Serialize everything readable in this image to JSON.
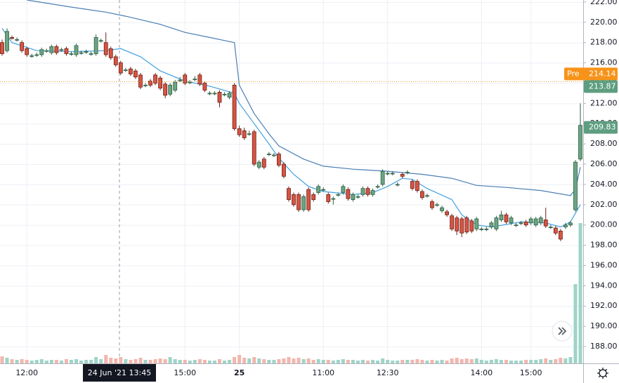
{
  "chart_data": {
    "type": "candlestick",
    "categories": [
      null,
      null,
      null,
      null,
      null,
      "12:00",
      null,
      null,
      null,
      null,
      null,
      null,
      null,
      null,
      null,
      null,
      null,
      null,
      null,
      null,
      null,
      null,
      null,
      null,
      null,
      null,
      null,
      null,
      null,
      null,
      null,
      null,
      null,
      null,
      null,
      null,
      null,
      "15:00",
      null,
      null,
      null,
      null,
      null,
      null,
      null,
      null,
      null,
      null,
      "25",
      null,
      null,
      null,
      null,
      null,
      null,
      null,
      null,
      null,
      null,
      null,
      null,
      null,
      null,
      null,
      null,
      "11:00",
      null,
      null,
      null,
      null,
      null,
      null,
      null,
      null,
      null,
      null,
      null,
      null,
      "12:30",
      null,
      null,
      null,
      null,
      null,
      null,
      null,
      null,
      null,
      null,
      null,
      null,
      null,
      null,
      null,
      null,
      null,
      null,
      "14:00",
      null,
      null,
      null,
      null,
      null,
      null,
      null,
      null,
      null,
      "15:00",
      null,
      null,
      null,
      null,
      null,
      null,
      null,
      null,
      null,
      null
    ],
    "open": [
      218.0,
      217.2,
      218.5,
      218.3,
      218.0,
      217.4,
      216.7,
      216.8,
      216.8,
      217.2,
      217.0,
      217.6,
      217.3,
      217.4,
      216.9,
      216.8,
      217.0,
      217.1,
      216.9,
      216.9,
      218.2,
      218.0,
      217.4,
      216.6,
      216.0,
      215.3,
      215.4,
      215.2,
      214.8,
      213.8,
      214.2,
      214.8,
      214.5,
      213.9,
      212.9,
      213.3,
      214.3,
      214.8,
      214.1,
      214.4,
      214.8,
      214.0,
      213.0,
      213.0,
      213.1,
      212.9,
      212.6,
      213.8,
      209.5,
      209.3,
      209.0,
      209.2,
      205.7,
      206.5,
      207.0,
      206.9,
      207.0,
      206.0,
      203.6,
      203.0,
      203.0,
      201.5,
      203.5,
      203.0,
      203.2,
      203.5,
      203.0,
      202.6,
      203.0,
      203.2,
      203.5,
      202.5,
      202.8,
      203.0,
      203.6,
      203.0,
      203.8,
      204.0,
      205.1,
      205.1,
      204.0,
      205.0,
      205.2,
      204.3,
      204.3,
      203.3,
      202.9,
      202.3,
      202.0,
      201.4,
      201.3,
      200.9,
      200.7,
      200.6,
      200.7,
      200.4,
      199.6,
      199.6,
      199.6,
      199.8,
      199.6,
      200.5,
      201.0,
      200.2,
      200.0,
      200.2,
      200.3,
      200.2,
      200.0,
      200.2,
      200.5,
      199.8,
      199.7,
      199.4,
      199.8,
      200.0,
      201.5,
      206.5
    ],
    "high": [
      218.3,
      219.4,
      218.7,
      218.5,
      218.2,
      217.6,
      216.9,
      217.0,
      217.5,
      217.4,
      217.8,
      217.8,
      217.5,
      217.6,
      217.1,
      217.9,
      217.2,
      217.3,
      217.1,
      218.8,
      218.4,
      219.0,
      217.6,
      216.8,
      216.2,
      215.5,
      215.6,
      215.4,
      215.0,
      214.0,
      214.4,
      215.0,
      214.7,
      214.1,
      214.0,
      214.3,
      214.6,
      215.0,
      214.3,
      214.7,
      215.0,
      214.2,
      213.2,
      213.2,
      213.3,
      213.1,
      213.2,
      214.0,
      209.8,
      209.6,
      209.3,
      209.4,
      206.4,
      206.7,
      207.2,
      207.1,
      207.2,
      206.2,
      203.8,
      203.2,
      203.2,
      203.0,
      203.7,
      203.2,
      204.0,
      203.7,
      203.2,
      202.8,
      203.2,
      204.0,
      203.7,
      203.2,
      203.0,
      203.8,
      203.8,
      203.6,
      204.0,
      205.5,
      205.3,
      205.3,
      204.2,
      205.2,
      205.4,
      204.5,
      204.5,
      203.5,
      203.1,
      202.5,
      202.2,
      201.9,
      201.5,
      201.1,
      200.9,
      200.8,
      200.9,
      200.6,
      200.8,
      199.8,
      199.8,
      200.4,
      200.9,
      201.4,
      201.2,
      200.9,
      200.2,
      200.4,
      200.5,
      200.8,
      200.8,
      200.9,
      201.7,
      200.0,
      199.9,
      199.6,
      200.2,
      200.4,
      206.4,
      212.0
    ],
    "low": [
      216.7,
      217.0,
      218.3,
      218.1,
      217.0,
      216.6,
      216.5,
      216.6,
      216.6,
      217.0,
      216.8,
      216.8,
      217.1,
      216.7,
      216.7,
      216.6,
      216.8,
      216.9,
      216.7,
      216.7,
      218.0,
      216.6,
      216.3,
      215.6,
      214.8,
      215.1,
      214.7,
      214.4,
      213.4,
      213.6,
      213.6,
      213.8,
      213.3,
      212.5,
      212.7,
      213.1,
      214.1,
      213.8,
      213.9,
      214.2,
      213.7,
      213.1,
      212.8,
      212.8,
      211.6,
      212.7,
      212.4,
      209.3,
      208.7,
      208.4,
      208.8,
      205.8,
      205.5,
      205.5,
      206.8,
      206.7,
      205.7,
      204.6,
      202.3,
      201.8,
      201.3,
      201.3,
      201.3,
      202.3,
      203.0,
      203.3,
      202.1,
      202.0,
      202.8,
      203.0,
      202.4,
      202.3,
      202.6,
      202.8,
      202.8,
      202.8,
      203.6,
      203.8,
      204.9,
      204.9,
      203.8,
      204.6,
      205.0,
      203.4,
      203.2,
      202.5,
      202.7,
      201.5,
      201.8,
      201.2,
      200.8,
      199.4,
      199.0,
      198.8,
      199.1,
      199.2,
      199.4,
      199.4,
      199.4,
      199.6,
      199.4,
      200.3,
      200.1,
      200.0,
      199.8,
      200.0,
      199.8,
      200.0,
      199.8,
      200.0,
      199.7,
      199.6,
      199.0,
      198.4,
      199.6,
      199.8,
      201.3,
      206.3
    ],
    "close": [
      216.9,
      219.1,
      218.4,
      218.3,
      217.2,
      216.8,
      216.7,
      216.8,
      217.3,
      217.2,
      217.6,
      217.0,
      217.3,
      216.9,
      216.9,
      217.7,
      217.0,
      217.1,
      216.9,
      218.5,
      218.2,
      216.8,
      216.5,
      215.8,
      215.0,
      215.3,
      214.9,
      214.6,
      213.6,
      213.8,
      213.8,
      214.0,
      213.5,
      212.8,
      213.8,
      214.1,
      214.3,
      214.0,
      214.1,
      214.4,
      213.9,
      213.3,
      213.0,
      213.0,
      212.1,
      212.9,
      213.0,
      209.5,
      208.9,
      208.6,
      209.0,
      206.0,
      206.2,
      205.7,
      207.0,
      206.9,
      205.9,
      204.8,
      202.5,
      202.0,
      201.5,
      202.8,
      201.5,
      202.5,
      203.8,
      203.5,
      202.3,
      202.6,
      203.0,
      203.8,
      202.6,
      203.0,
      202.8,
      203.6,
      203.0,
      203.4,
      203.8,
      205.3,
      205.1,
      205.1,
      204.0,
      204.8,
      205.2,
      203.6,
      203.4,
      202.7,
      202.9,
      201.7,
      202.0,
      201.7,
      201.0,
      199.6,
      199.4,
      199.2,
      199.3,
      199.4,
      200.6,
      199.6,
      199.6,
      200.2,
      200.7,
      201.0,
      200.3,
      200.7,
      200.0,
      200.2,
      200.0,
      200.6,
      200.6,
      200.7,
      199.9,
      199.8,
      199.2,
      198.6,
      200.0,
      200.2,
      206.2,
      209.83
    ],
    "volume": [
      10,
      8,
      6,
      5,
      6,
      5,
      4,
      5,
      6,
      4,
      5,
      5,
      4,
      6,
      5,
      6,
      4,
      5,
      5,
      9,
      6,
      12,
      8,
      7,
      9,
      6,
      5,
      6,
      8,
      5,
      5,
      6,
      7,
      6,
      9,
      6,
      5,
      5,
      4,
      5,
      6,
      5,
      4,
      4,
      6,
      4,
      5,
      9,
      12,
      8,
      7,
      9,
      7,
      6,
      5,
      5,
      6,
      7,
      9,
      7,
      8,
      6,
      7,
      5,
      6,
      5,
      5,
      4,
      5,
      6,
      5,
      5,
      4,
      5,
      4,
      5,
      4,
      7,
      5,
      4,
      4,
      5,
      5,
      5,
      6,
      5,
      4,
      5,
      4,
      5,
      4,
      7,
      8,
      6,
      7,
      6,
      7,
      5,
      4,
      5,
      6,
      5,
      5,
      4,
      4,
      4,
      5,
      5,
      5,
      6,
      7,
      5,
      6,
      8,
      7,
      9,
      113,
      200
    ],
    "up_color": "#6ba583",
    "down_color": "#d75442",
    "up_volume_color": "#9fd4c8",
    "down_volume_color": "#f2b6ae",
    "lines": [
      {
        "color": "#4a7eb5",
        "x": [
          5,
          14,
          21,
          25,
          32,
          37,
          42,
          47,
          48,
          51,
          54,
          56,
          61,
          65,
          71,
          78,
          85,
          91,
          96,
          102,
          109,
          115,
          116,
          117
        ],
        "values": [
          222.2,
          221.5,
          221.0,
          220.6,
          219.8,
          219.0,
          218.5,
          218.0,
          213.8,
          211.0,
          209.0,
          207.8,
          206.5,
          205.8,
          205.5,
          205.3,
          205.0,
          204.6,
          203.9,
          203.7,
          203.4,
          202.9,
          203.5,
          205.7
        ]
      },
      {
        "color": "#3fa0e0",
        "x": [
          0,
          2,
          7,
          14,
          21,
          24,
          28,
          32,
          37,
          42,
          47,
          48,
          51,
          54,
          56,
          59,
          62,
          65,
          71,
          75,
          78,
          81,
          83,
          86,
          91,
          93,
          96,
          99,
          105,
          110,
          113,
          115,
          117
        ],
        "values": [
          219.4,
          218.0,
          217.2,
          217.1,
          217.2,
          217.4,
          216.6,
          215.2,
          214.2,
          213.7,
          213.0,
          212.0,
          210.0,
          208.0,
          206.6,
          205.0,
          203.8,
          203.3,
          203.0,
          203.2,
          203.8,
          204.6,
          204.5,
          203.6,
          202.5,
          201.0,
          200.0,
          199.8,
          200.3,
          200.2,
          199.8,
          200.3,
          202.0
        ]
      }
    ],
    "ylim": [
      186.34,
      222.2
    ],
    "y2lim": [
      0,
      500
    ],
    "yticks": [
      {
        "value": 188,
        "label": "188.00"
      },
      {
        "value": 190,
        "label": "190.00"
      },
      {
        "value": 192,
        "label": "192.00"
      },
      {
        "value": 194,
        "label": "194.00"
      },
      {
        "value": 196,
        "label": "196.00"
      },
      {
        "value": 198,
        "label": "198.00"
      },
      {
        "value": 200,
        "label": "200.00"
      },
      {
        "value": 202,
        "label": "202.00"
      },
      {
        "value": 204,
        "label": "204.00"
      },
      {
        "value": 206,
        "label": "206.00"
      },
      {
        "value": 208,
        "label": "208.00"
      },
      {
        "value": 210,
        "label": "210.00"
      },
      {
        "value": 212,
        "label": "212.00"
      },
      {
        "value": 214,
        "label": "214.00"
      },
      {
        "value": 216,
        "label": "216.00"
      },
      {
        "value": 218,
        "label": "218.00"
      },
      {
        "value": 220,
        "label": "220.00"
      },
      {
        "value": 222,
        "label": "222.00"
      }
    ],
    "grid": true,
    "crosshair": {
      "label": "24 Jun '21  13:45"
    },
    "badges": [
      {
        "name": "Pre",
        "value": 214.14,
        "label": "214.14",
        "color": "#f7931a"
      },
      {
        "value": 213.87,
        "label": "213.87",
        "color": "#5e9e80"
      },
      {
        "value": 209.83,
        "label": "209.83",
        "color": "#5e9e80"
      }
    ]
  }
}
